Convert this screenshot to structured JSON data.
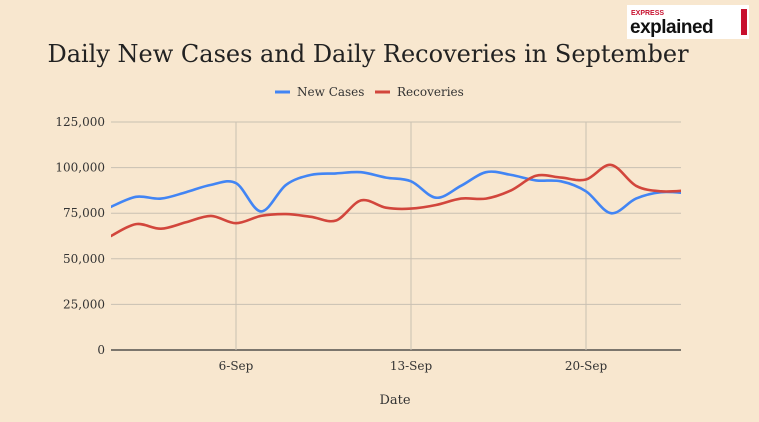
{
  "brand": {
    "small_word": "EXPRESS",
    "big_word": "explained",
    "color_red": "#c8102e"
  },
  "chart_data": {
    "type": "line",
    "title": "Daily New Cases and Daily Recoveries in September",
    "xlabel": "Date",
    "ylabel": "",
    "x": [
      1,
      2,
      3,
      4,
      5,
      6,
      7,
      8,
      9,
      10,
      11,
      12,
      13,
      14,
      15,
      16,
      17,
      18,
      19,
      20,
      21,
      22,
      23,
      24
    ],
    "x_ticks": [
      {
        "day": 6,
        "label": "6-Sep"
      },
      {
        "day": 13,
        "label": "13-Sep"
      },
      {
        "day": 20,
        "label": "20-Sep"
      }
    ],
    "xlim": [
      1,
      23.8
    ],
    "ylim": [
      0,
      125000
    ],
    "y_ticks": [
      0,
      25000,
      50000,
      75000,
      100000,
      125000
    ],
    "y_tick_labels": [
      "0",
      "25,000",
      "50,000",
      "75,000",
      "100,000",
      "125,000"
    ],
    "grid": true,
    "legend_position": "top-center",
    "series": [
      {
        "name": "New Cases",
        "color": "#4285f4",
        "values": [
          78500,
          84000,
          83000,
          86500,
          90500,
          91500,
          76000,
          90500,
          96000,
          96800,
          97500,
          94500,
          92500,
          83500,
          90000,
          97500,
          96000,
          93000,
          92500,
          87000,
          75000,
          83000,
          86500,
          86000
        ]
      },
      {
        "name": "Recoveries",
        "color": "#d2463c",
        "values": [
          62500,
          69000,
          66500,
          70000,
          73500,
          69500,
          73500,
          74500,
          73000,
          71000,
          82000,
          78000,
          77500,
          79500,
          83000,
          83000,
          87500,
          95500,
          94500,
          93500,
          101500,
          90000,
          87000,
          87500
        ]
      }
    ]
  }
}
